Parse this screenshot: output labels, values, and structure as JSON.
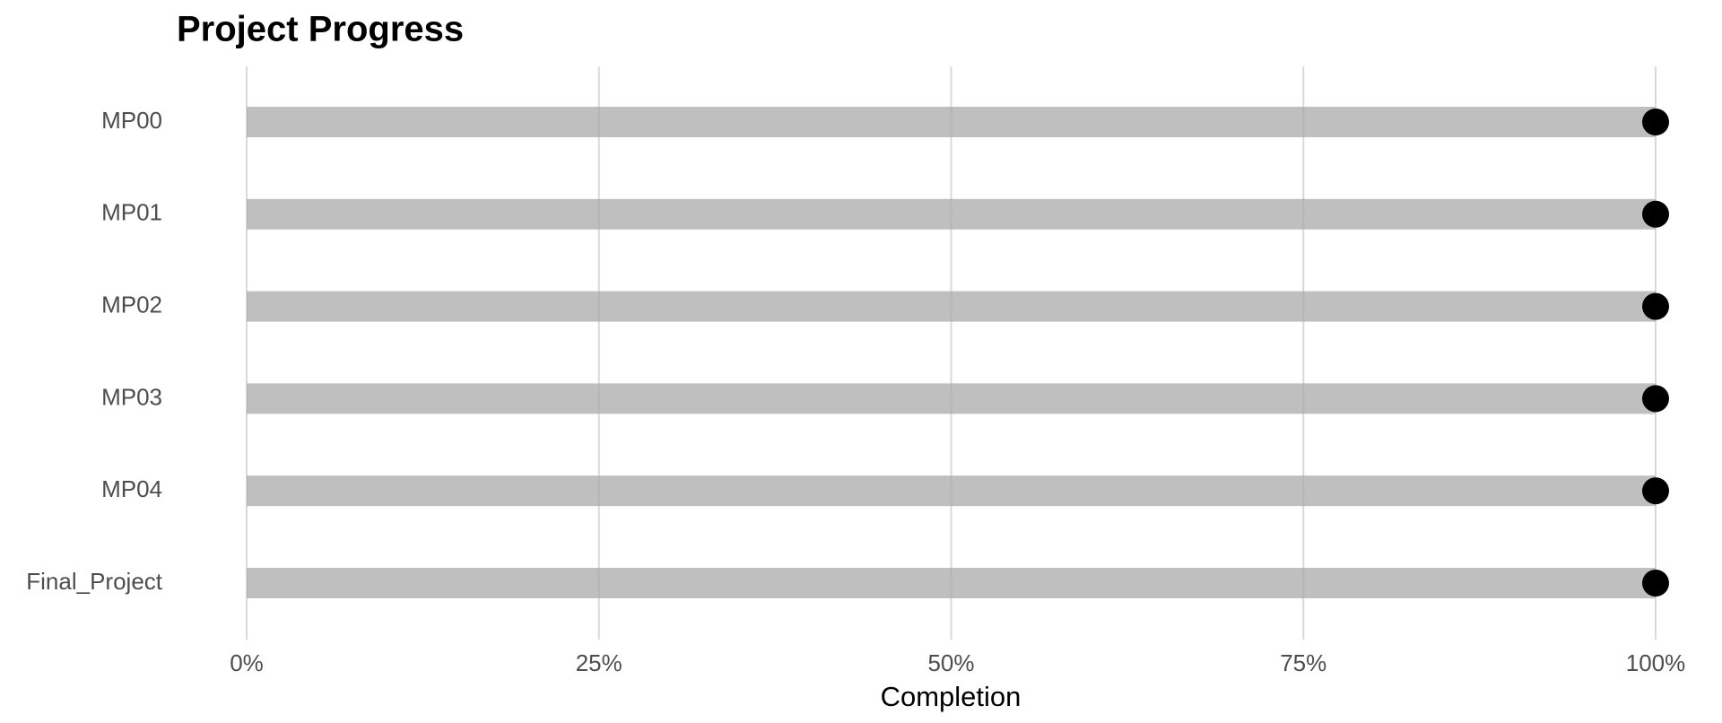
{
  "chart_data": {
    "type": "bar",
    "orientation": "horizontal",
    "title": "Project Progress",
    "x_label": "Completion",
    "categories": [
      "MP00",
      "MP01",
      "MP02",
      "MP03",
      "MP04",
      "Final_Project"
    ],
    "values": [
      100,
      100,
      100,
      100,
      100,
      100
    ],
    "color": "#a9a9a9",
    "point_color": "#000000",
    "xlim": [
      0,
      100
    ],
    "xticks": [
      {
        "value": 0,
        "label": "0%"
      },
      {
        "value": 25,
        "label": "25%"
      },
      {
        "value": 50,
        "label": "50%"
      },
      {
        "value": 75,
        "label": "75%"
      },
      {
        "value": 100,
        "label": "100%"
      }
    ],
    "grid": true
  }
}
